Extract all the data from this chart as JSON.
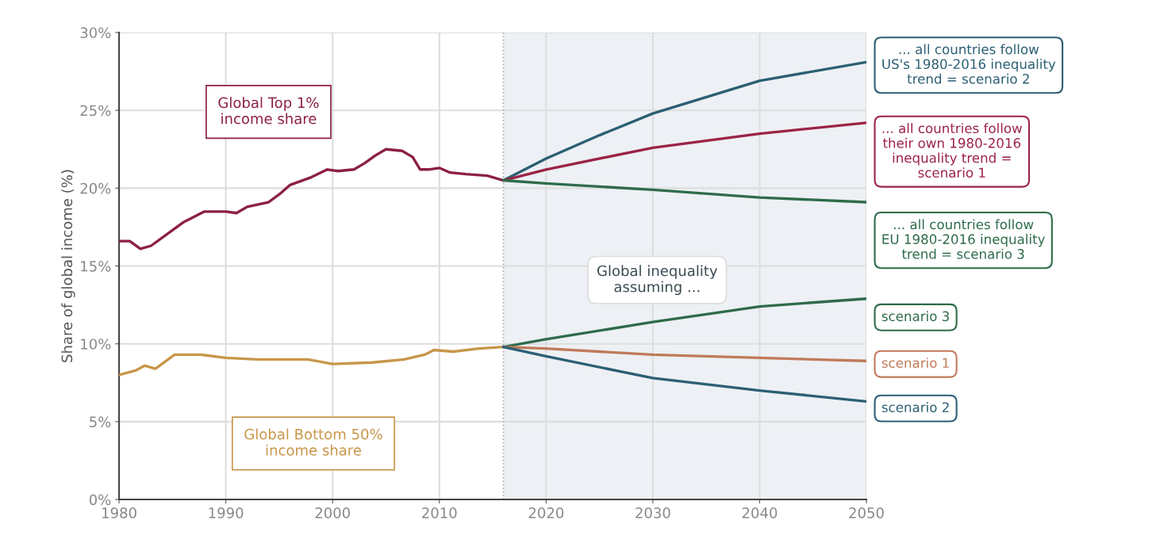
{
  "chart_data": {
    "type": "line",
    "ylabel": "Share of global income (%)",
    "xlim": [
      1980,
      2050
    ],
    "xticks": [
      1980,
      1990,
      2000,
      2010,
      2020,
      2030,
      2040,
      2050
    ],
    "ylim": [
      0,
      30
    ],
    "yticks": [
      {
        "value": 0,
        "label": "0%"
      },
      {
        "value": 5,
        "label": "5%"
      },
      {
        "value": 10,
        "label": "10%"
      },
      {
        "value": 15,
        "label": "15%"
      },
      {
        "value": 20,
        "label": "20%"
      },
      {
        "value": 25,
        "label": "25%"
      },
      {
        "value": 30,
        "label": "30%"
      }
    ],
    "grid": true,
    "legend": false,
    "line_style": "solid",
    "series": [
      {
        "name": "Global Top 1% income share",
        "color": "#8c1f45",
        "x": [
          1980,
          1981,
          1982,
          1983,
          1985,
          1986,
          1988,
          1990,
          1991,
          1992,
          1994,
          1995,
          1996,
          1998,
          1999.5,
          2000.5,
          2002,
          2003,
          2004,
          2005,
          2006.5,
          2007.5,
          2008.2,
          2009,
          2010,
          2011,
          2012.5,
          2014.5,
          2016
        ],
        "values": [
          16.6,
          16.6,
          16.1,
          16.3,
          17.3,
          17.8,
          18.5,
          18.5,
          18.4,
          18.8,
          19.1,
          19.6,
          20.2,
          20.7,
          21.2,
          21.1,
          21.2,
          21.6,
          22.1,
          22.5,
          22.4,
          22.0,
          21.2,
          21.2,
          21.3,
          21.0,
          20.9,
          20.8,
          20.5
        ]
      },
      {
        "name": "Global Bottom 50% income share",
        "color": "#c8964a",
        "x": [
          1980,
          1981.6,
          1982.4,
          1983.4,
          1985.2,
          1987.7,
          1990,
          1993,
          1997.7,
          2000,
          2003.7,
          2006.7,
          2008.6,
          2009.5,
          2011.3,
          2013.7,
          2016
        ],
        "values": [
          8.0,
          8.3,
          8.6,
          8.4,
          9.3,
          9.3,
          9.1,
          9.0,
          9.0,
          8.7,
          8.8,
          9.0,
          9.3,
          9.6,
          9.5,
          9.7,
          9.8
        ]
      },
      {
        "name": "... all countries follow US's 1980-2016 inequality trend = scenario 2",
        "color": "#2b5f73",
        "x": [
          2016,
          2020,
          2025,
          2030,
          2040,
          2050
        ],
        "values": [
          20.5,
          21.9,
          23.4,
          24.8,
          26.9,
          28.1
        ]
      },
      {
        "name": "... all countries follow their own 1980-2016 inequality trend = scenario 1",
        "color": "#9b2346",
        "x": [
          2016,
          2020,
          2030,
          2040,
          2050
        ],
        "values": [
          20.5,
          21.2,
          22.6,
          23.5,
          24.2
        ]
      },
      {
        "name": "... all countries follow EU 1980-2016 inequality trend = scenario 3",
        "color": "#2e6b4a",
        "x": [
          2016,
          2020,
          2030,
          2040,
          2050
        ],
        "values": [
          20.5,
          20.3,
          19.9,
          19.4,
          19.1
        ]
      },
      {
        "name": "scenario 3",
        "color": "#2e6b4a",
        "x": [
          2016,
          2020,
          2030,
          2040,
          2050
        ],
        "values": [
          9.8,
          10.3,
          11.4,
          12.4,
          12.9
        ]
      },
      {
        "name": "scenario 1",
        "color": "#c07a5a",
        "x": [
          2016,
          2020,
          2030,
          2040,
          2050
        ],
        "values": [
          9.8,
          9.7,
          9.3,
          9.1,
          8.9
        ]
      },
      {
        "name": "scenario 2",
        "color": "#2b5f73",
        "x": [
          2016,
          2020,
          2030,
          2040,
          2050
        ],
        "values": [
          9.8,
          9.2,
          7.8,
          7.0,
          6.3
        ]
      }
    ],
    "bands": [
      {
        "axis": "x",
        "from": 2016,
        "to": 2050,
        "color": "#edf0f4"
      }
    ],
    "ref_lines": [
      {
        "axis": "x",
        "value": 2016,
        "color": "#aaaaaa",
        "line_style": "dotted"
      }
    ],
    "annotations": [
      "Global inequality assuming ..."
    ]
  }
}
